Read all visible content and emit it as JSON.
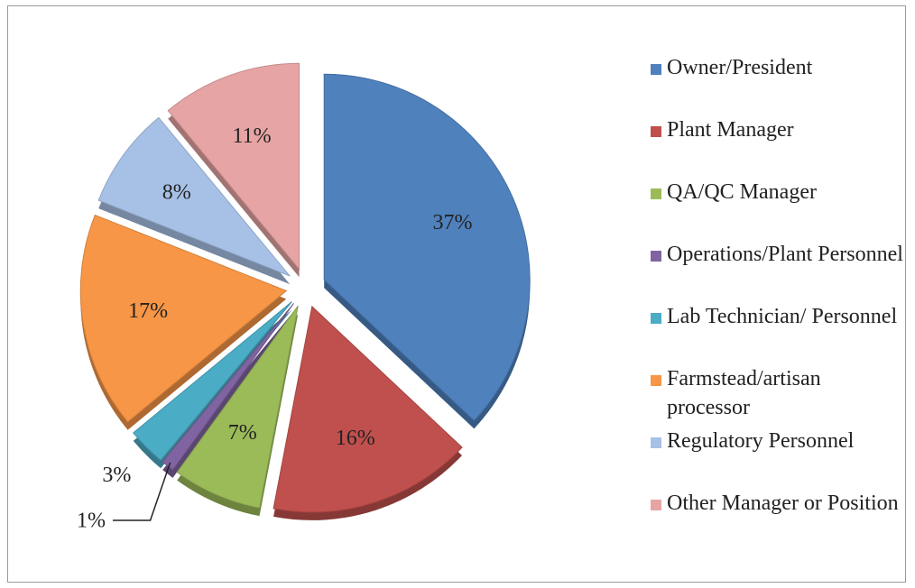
{
  "chart_data": {
    "type": "pie",
    "categories": [
      "Owner/President",
      "Plant Manager",
      "QA/QC Manager",
      "Operations/Plant Personnel",
      "Lab Technician/ Personnel",
      "Farmstead/artisan processor",
      "Regulatory Personnel",
      "Other Manager or Position"
    ],
    "values": [
      37,
      16,
      7,
      1,
      3,
      17,
      8,
      11
    ],
    "value_labels": [
      "37%",
      "16%",
      "7%",
      "1%",
      "3%",
      "17%",
      "8%",
      "11%"
    ],
    "colors": [
      "#4f81bd",
      "#c0504d",
      "#9bbb59",
      "#8064a2",
      "#4bacc6",
      "#f79646",
      "#a7c1e6",
      "#e6a5a4"
    ],
    "legend": "right"
  }
}
